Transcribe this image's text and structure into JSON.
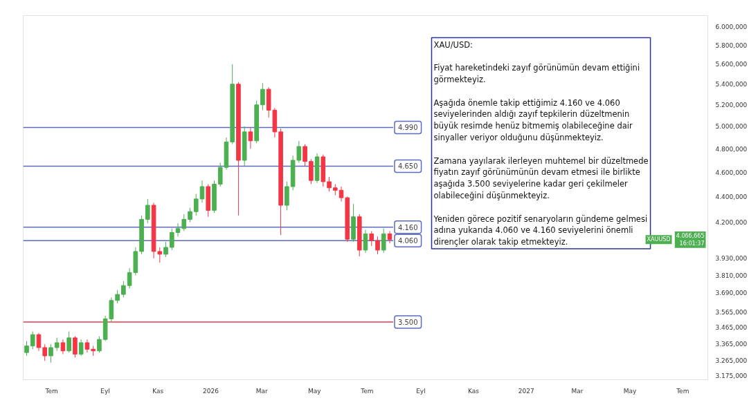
{
  "chart_data": {
    "type": "candlestick",
    "x": [
      "2025-06-02",
      "2025-06-09",
      "2025-06-16",
      "2025-06-23",
      "2025-06-30",
      "2025-07-07",
      "2025-07-14",
      "2025-07-21",
      "2025-07-28",
      "2025-08-04",
      "2025-08-11",
      "2025-08-18",
      "2025-08-25",
      "2025-09-01",
      "2025-09-08",
      "2025-09-15",
      "2025-09-22",
      "2025-09-29",
      "2025-10-06",
      "2025-10-13",
      "2025-10-20",
      "2025-10-27",
      "2025-11-03",
      "2025-11-10",
      "2025-11-17",
      "2025-11-24",
      "2025-12-01",
      "2025-12-08",
      "2025-12-15",
      "2025-12-22",
      "2025-12-29",
      "2026-01-05",
      "2026-01-12",
      "2026-01-19",
      "2026-01-26",
      "2026-02-02",
      "2026-02-09",
      "2026-02-16",
      "2026-02-23",
      "2026-03-02",
      "2026-03-09",
      "2026-03-16",
      "2026-03-23",
      "2026-03-30",
      "2026-04-06",
      "2026-04-13",
      "2026-04-20",
      "2026-04-27",
      "2026-05-04",
      "2026-05-11",
      "2026-05-18",
      "2026-05-25",
      "2026-06-01",
      "2026-06-08",
      "2026-06-15",
      "2026-06-22",
      "2026-06-29",
      "2026-07-06",
      "2026-07-13",
      "2026-07-20",
      "2026-07-27"
    ],
    "ohlc": [
      [
        3310,
        3380,
        3290,
        3350
      ],
      [
        3350,
        3440,
        3330,
        3420
      ],
      [
        3420,
        3430,
        3320,
        3340
      ],
      [
        3340,
        3360,
        3260,
        3290
      ],
      [
        3290,
        3360,
        3250,
        3340
      ],
      [
        3340,
        3400,
        3320,
        3370
      ],
      [
        3370,
        3390,
        3300,
        3320
      ],
      [
        3320,
        3440,
        3310,
        3400
      ],
      [
        3400,
        3410,
        3280,
        3300
      ],
      [
        3300,
        3390,
        3290,
        3370
      ],
      [
        3370,
        3390,
        3310,
        3330
      ],
      [
        3330,
        3350,
        3290,
        3320
      ],
      [
        3320,
        3410,
        3310,
        3390
      ],
      [
        3390,
        3540,
        3380,
        3520
      ],
      [
        3520,
        3660,
        3500,
        3640
      ],
      [
        3640,
        3710,
        3620,
        3680
      ],
      [
        3680,
        3770,
        3660,
        3740
      ],
      [
        3740,
        3860,
        3720,
        3830
      ],
      [
        3830,
        4010,
        3810,
        3980
      ],
      [
        3980,
        4250,
        3960,
        4220
      ],
      [
        4220,
        4380,
        4190,
        4330
      ],
      [
        4330,
        4350,
        3930,
        3980
      ],
      [
        3980,
        4010,
        3900,
        3960
      ],
      [
        3960,
        4050,
        3940,
        4010
      ],
      [
        4010,
        4150,
        3990,
        4120
      ],
      [
        4120,
        4190,
        4090,
        4150
      ],
      [
        4150,
        4260,
        4130,
        4220
      ],
      [
        4220,
        4310,
        4200,
        4280
      ],
      [
        4280,
        4420,
        4250,
        4380
      ],
      [
        4380,
        4530,
        4350,
        4480
      ],
      [
        4480,
        4500,
        4240,
        4290
      ],
      [
        4290,
        4530,
        4270,
        4500
      ],
      [
        4500,
        4680,
        4480,
        4640
      ],
      [
        4640,
        4900,
        4620,
        4860
      ],
      [
        4860,
        5600,
        4840,
        5400
      ],
      [
        5400,
        5420,
        4250,
        4700
      ],
      [
        4700,
        5000,
        4650,
        4950
      ],
      [
        4950,
        4990,
        4800,
        4870
      ],
      [
        4870,
        5240,
        4850,
        5200
      ],
      [
        5200,
        5410,
        5150,
        5350
      ],
      [
        5350,
        5370,
        5080,
        5150
      ],
      [
        5150,
        5170,
        4900,
        4950
      ],
      [
        4950,
        4980,
        4100,
        4330
      ],
      [
        4330,
        4520,
        4290,
        4480
      ],
      [
        4480,
        4740,
        4450,
        4700
      ],
      [
        4700,
        4870,
        4680,
        4820
      ],
      [
        4820,
        4840,
        4650,
        4690
      ],
      [
        4690,
        4710,
        4500,
        4530
      ],
      [
        4530,
        4760,
        4510,
        4730
      ],
      [
        4730,
        4750,
        4480,
        4520
      ],
      [
        4520,
        4560,
        4440,
        4470
      ],
      [
        4470,
        4500,
        4410,
        4450
      ],
      [
        4450,
        4480,
        4360,
        4390
      ],
      [
        4390,
        4400,
        4050,
        4070
      ],
      [
        4070,
        4340,
        4050,
        4240
      ],
      [
        4240,
        4260,
        3945,
        3990
      ],
      [
        3990,
        4140,
        3970,
        4110
      ],
      [
        4110,
        4130,
        4020,
        4060
      ],
      [
        4060,
        4090,
        3960,
        3990
      ],
      [
        3990,
        4150,
        3970,
        4110
      ],
      [
        4110,
        4130,
        4040,
        4066.665
      ]
    ],
    "colors": [
      "#4caf50",
      "#4caf50",
      "#f23645",
      "#f23645",
      "#4caf50",
      "#4caf50",
      "#f23645",
      "#4caf50",
      "#f23645",
      "#4caf50",
      "#f23645",
      "#f23645",
      "#4caf50",
      "#4caf50",
      "#4caf50",
      "#4caf50",
      "#4caf50",
      "#4caf50",
      "#4caf50",
      "#4caf50",
      "#4caf50",
      "#f23645",
      "#f23645",
      "#4caf50",
      "#4caf50",
      "#4caf50",
      "#4caf50",
      "#4caf50",
      "#4caf50",
      "#4caf50",
      "#f23645",
      "#4caf50",
      "#4caf50",
      "#4caf50",
      "#4caf50",
      "#f23645",
      "#4caf50",
      "#f23645",
      "#4caf50",
      "#4caf50",
      "#f23645",
      "#f23645",
      "#f23645",
      "#4caf50",
      "#4caf50",
      "#4caf50",
      "#f23645",
      "#f23645",
      "#4caf50",
      "#f23645",
      "#f23645",
      "#f23645",
      "#f23645",
      "#f23645",
      "#4caf50",
      "#f23645",
      "#4caf50",
      "#f23645",
      "#f23645",
      "#4caf50",
      "#f23645"
    ],
    "log": true,
    "xlim": [
      "2025-05-29",
      "2027-07-30"
    ],
    "xticks": [
      {
        "value": "2025-07-01",
        "label": "Tem"
      },
      {
        "value": "2025-09-01",
        "label": "Eyl"
      },
      {
        "value": "2025-11-01",
        "label": "Kas"
      },
      {
        "value": "2026-01-01",
        "label": "2026"
      },
      {
        "value": "2026-03-01",
        "label": "Mar"
      },
      {
        "value": "2026-05-01",
        "label": "May"
      },
      {
        "value": "2026-07-01",
        "label": "Tem"
      },
      {
        "value": "2026-09-01",
        "label": "Eyl"
      },
      {
        "value": "2026-11-01",
        "label": "Kas"
      },
      {
        "value": "2027-01-01",
        "label": "2027"
      },
      {
        "value": "2027-03-01",
        "label": "Mar"
      },
      {
        "value": "2027-05-01",
        "label": "May"
      },
      {
        "value": "2027-07-01",
        "label": "Tem"
      }
    ],
    "ylim": [
      3150,
      6120
    ],
    "yticks": [
      {
        "value": 3175,
        "label": "3.175,000"
      },
      {
        "value": 3265,
        "label": "3.265,000"
      },
      {
        "value": 3365,
        "label": "3.365,000"
      },
      {
        "value": 3465,
        "label": "3.465,000"
      },
      {
        "value": 3565,
        "label": "3.565,000"
      },
      {
        "value": 3690,
        "label": "3.690,000"
      },
      {
        "value": 3810,
        "label": "3.810,000"
      },
      {
        "value": 3930,
        "label": "3.930,000"
      },
      {
        "value": 4200,
        "label": "4.200,000"
      },
      {
        "value": 4400,
        "label": "4.400,000"
      },
      {
        "value": 4600,
        "label": "4.600,000"
      },
      {
        "value": 4800,
        "label": "4.800,000"
      },
      {
        "value": 5000,
        "label": "5.000,000"
      },
      {
        "value": 5200,
        "label": "5.200,000"
      },
      {
        "value": 5400,
        "label": "5.400,000"
      },
      {
        "value": 5600,
        "label": "5.600,000"
      },
      {
        "value": 5800,
        "label": "5.800,000"
      },
      {
        "value": 6000,
        "label": "6.000,000"
      }
    ],
    "ref_lines": [
      {
        "axis": "y",
        "value": 4990,
        "label": "4.990",
        "color": "#5c6bc0"
      },
      {
        "axis": "y",
        "value": 4650,
        "label": "4.650",
        "color": "#5c6bc0"
      },
      {
        "axis": "y",
        "value": 4160,
        "label": "4.160",
        "color": "#5c6bc0"
      },
      {
        "axis": "y",
        "value": 4060,
        "label": "4.060",
        "color": "#5c6bc0"
      },
      {
        "axis": "y",
        "value": 3500,
        "label": "3.500",
        "color": "#e53950"
      }
    ],
    "annotations": [
      "XAU/USD:\n\nFiyat hareketindeki zayıf görünümün devam ettiğini\ngörmekteyiz.\n\nAşağıda önemle takip ettiğimiz 4.160 ve 4.060\nseviyelerinden  aldığı zayıf tepkilerin düzeltmenin\nbüyük resimde henüz bitmemiş olabileceğine dair\nsinyaller veriyor olduğunu düşünmekteyiz.\n\nZamana yayılarak ilerleyen muhtemel bir düzeltmede\nfiyatın zayıf görünümünün devam etmesi ile birlikte\naşağıda 3.500 seviyelerine kadar geri çekilmeler\nolabileceğini düşünmekteyiz.\n\nYeniden görece pozitif senaryoların gündeme gelmesi\nadına yukarıda 4.060 ve 4.160 seviyelerini önemli\ndirençler olarak takip etmekteyiz.",
      "XAUUSD",
      "4.066,665\n16:01:37"
    ]
  }
}
